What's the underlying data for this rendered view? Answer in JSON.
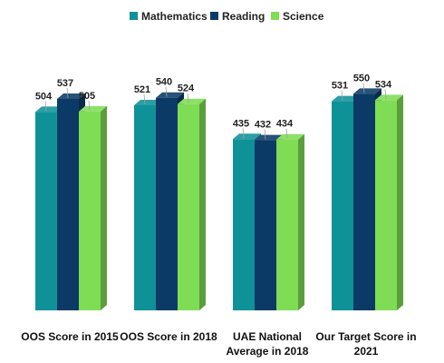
{
  "chart_data": {
    "type": "bar",
    "categories": [
      [
        "OOS Score in 2015"
      ],
      [
        "OOS Score in 2018"
      ],
      [
        "UAE National",
        "Average in 2018"
      ],
      [
        "Our Target Score in",
        "2021"
      ]
    ],
    "series": [
      {
        "name": "Mathematics",
        "values": [
          504,
          521,
          435,
          531
        ],
        "color": "#0e9298"
      },
      {
        "name": "Reading",
        "values": [
          537,
          540,
          432,
          550
        ],
        "color": "#0c3a66"
      },
      {
        "name": "Science",
        "values": [
          505,
          524,
          434,
          534
        ],
        "color": "#7fdc55"
      }
    ],
    "title": "",
    "xlabel": "",
    "ylabel": "",
    "ylim": [
      0,
      600
    ],
    "grid": false,
    "legend_position": "top-center",
    "style": "3d-bar",
    "show_data_labels": true
  }
}
